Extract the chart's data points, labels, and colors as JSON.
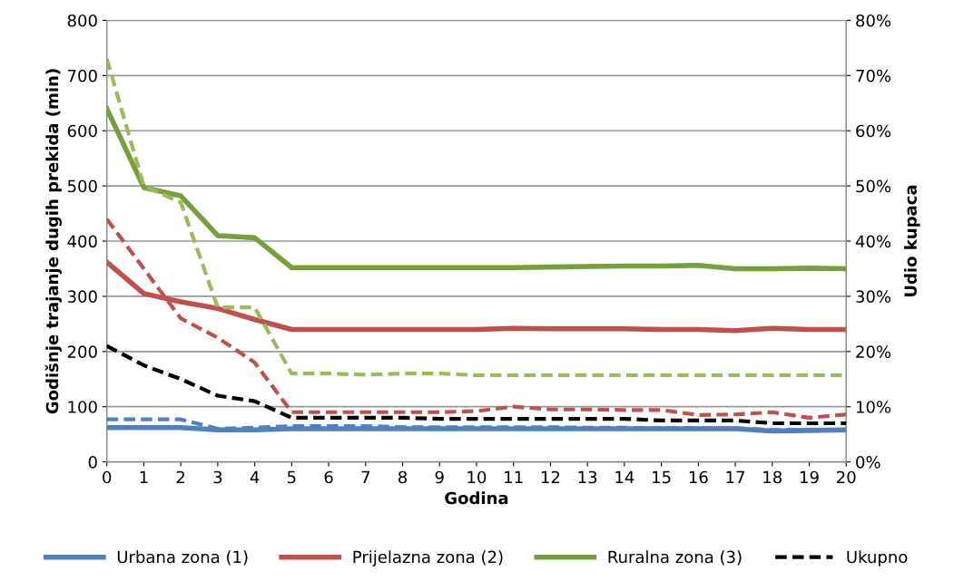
{
  "chart_data": {
    "type": "line",
    "xlabel": "Godina",
    "ylabel": "Godišnje trajanje dugih prekida (min)",
    "y2label": "Udio kupaca",
    "x": [
      0,
      1,
      2,
      3,
      4,
      5,
      6,
      7,
      8,
      9,
      10,
      11,
      12,
      13,
      14,
      15,
      16,
      17,
      18,
      19,
      20
    ],
    "xlim": [
      0,
      20
    ],
    "xticks": [
      0,
      1,
      2,
      3,
      4,
      5,
      6,
      7,
      8,
      9,
      10,
      11,
      12,
      13,
      14,
      15,
      16,
      17,
      18,
      19,
      20
    ],
    "ylim": [
      0,
      800
    ],
    "yticks": [
      0,
      100,
      200,
      300,
      400,
      500,
      600,
      700,
      800
    ],
    "y2lim": [
      0,
      80
    ],
    "y2ticks": [
      {
        "value": 0,
        "label": "0%"
      },
      {
        "value": 10,
        "label": "10%"
      },
      {
        "value": 20,
        "label": "20%"
      },
      {
        "value": 30,
        "label": "30%"
      },
      {
        "value": 40,
        "label": "40%"
      },
      {
        "value": 50,
        "label": "50%"
      },
      {
        "value": 60,
        "label": "60%"
      },
      {
        "value": 70,
        "label": "70%"
      },
      {
        "value": 80,
        "label": "80%"
      }
    ],
    "grid": "y",
    "legend": "bottom",
    "marker": "none",
    "series": [
      {
        "name": "Urbana zona (1)",
        "color": "#4f81bd",
        "line_style": "solid",
        "values": [
          62,
          62,
          62,
          58,
          58,
          60,
          60,
          60,
          60,
          60,
          60,
          60,
          60,
          60,
          60,
          60,
          60,
          60,
          56,
          57,
          58
        ]
      },
      {
        "name": "Prijelazna zona (2)",
        "color": "#c0504d",
        "line_style": "solid",
        "values": [
          362,
          305,
          290,
          278,
          258,
          240,
          240,
          240,
          240,
          240,
          240,
          242,
          241,
          241,
          241,
          240,
          240,
          238,
          242,
          240,
          240
        ]
      },
      {
        "name": "Ruralna zona (3)",
        "color": "#77a03c",
        "line_style": "solid",
        "values": [
          640,
          497,
          482,
          410,
          406,
          352,
          352,
          352,
          352,
          352,
          352,
          352,
          353,
          354,
          355,
          355,
          356,
          350,
          350,
          351,
          350
        ]
      },
      {
        "color": "#4f81bd",
        "line_style": "dashed",
        "axis": "y2",
        "values": [
          7.7,
          7.7,
          7.7,
          6,
          6.2,
          6.5,
          6.5,
          6.5,
          6.3,
          6.3,
          6.3,
          6.3,
          6.3,
          6.2,
          6.2,
          6.1,
          6.1,
          6.1,
          5.8,
          5.8,
          5.8
        ]
      },
      {
        "color": "#c0504d",
        "line_style": "dashed",
        "axis": "y2",
        "values": [
          44,
          35,
          26,
          22.5,
          18,
          9,
          9,
          9,
          9,
          9,
          9.2,
          10,
          9.5,
          9.5,
          9.4,
          9.4,
          8.5,
          8.6,
          9,
          8,
          8.6
        ]
      },
      {
        "color": "#9bbb59",
        "line_style": "dashed",
        "axis": "y2",
        "values": [
          73,
          50,
          47,
          28,
          28,
          16,
          16,
          15.8,
          16,
          16,
          15.7,
          15.7,
          15.7,
          15.7,
          15.7,
          15.7,
          15.7,
          15.7,
          15.7,
          15.7,
          15.7
        ]
      },
      {
        "name": "Ukupno",
        "color": "#000000",
        "line_style": "dashed",
        "axis": "y2",
        "values": [
          21,
          17.5,
          15,
          12,
          11,
          8,
          8,
          8,
          8,
          7.8,
          7.8,
          7.8,
          7.8,
          7.8,
          7.8,
          7.5,
          7.5,
          7.5,
          7,
          7,
          7
        ]
      }
    ]
  }
}
